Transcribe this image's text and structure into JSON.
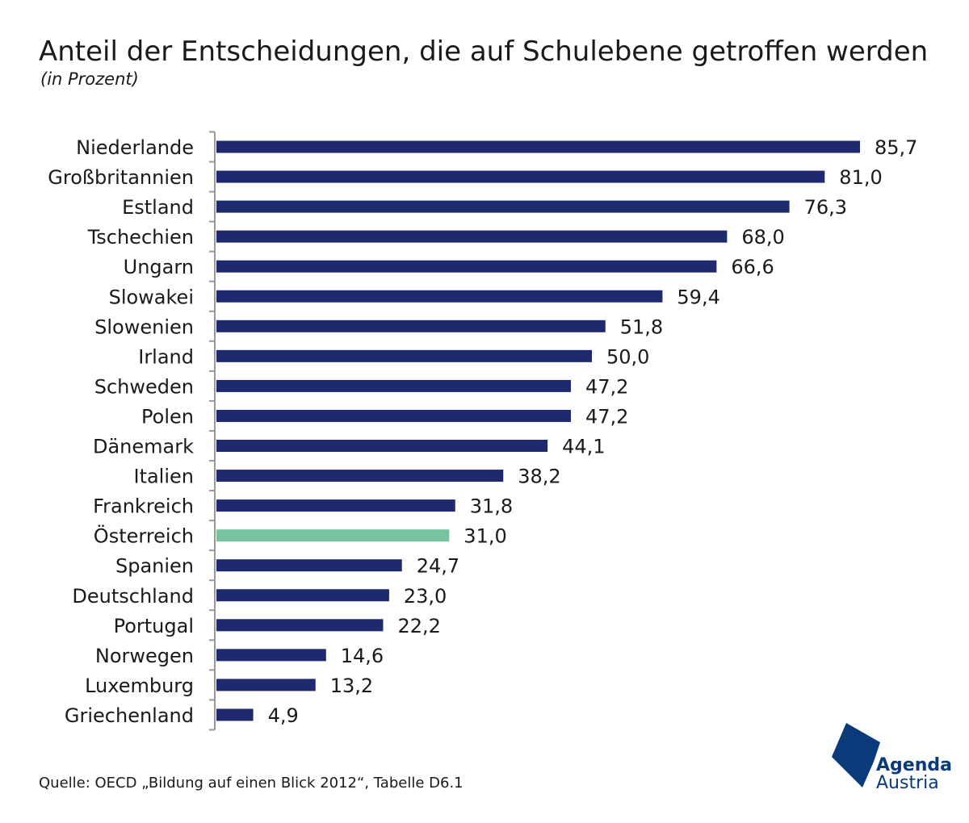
{
  "title": "Anteil der Entscheidungen, die auf Schulebene getroffen werden",
  "subtitle": "(in Prozent)",
  "source": "Quelle: OECD „Bildung auf einen Blick 2012“, Tabelle D6.1",
  "logo": {
    "line1": "Agenda",
    "line2": "Austria",
    "icon": "agenda-austria-logo-icon"
  },
  "colors": {
    "bar": "#1f2a6e",
    "highlight": "#78c2a0",
    "axis": "#999999",
    "logo": "#0a3a7a"
  },
  "chart_data": {
    "type": "bar",
    "orientation": "horizontal",
    "categories": [
      "Niederlande",
      "Großbritannien",
      "Estland",
      "Tschechien",
      "Ungarn",
      "Slowakei",
      "Slowenien",
      "Irland",
      "Schweden",
      "Polen",
      "Dänemark",
      "Italien",
      "Frankreich",
      "Österreich",
      "Spanien",
      "Deutschland",
      "Portugal",
      "Norwegen",
      "Luxemburg",
      "Griechenland"
    ],
    "values": [
      85.7,
      81.0,
      76.3,
      68.0,
      66.6,
      59.4,
      51.8,
      50.0,
      47.2,
      47.2,
      44.1,
      38.2,
      31.8,
      31.0,
      24.7,
      23.0,
      22.2,
      14.6,
      13.2,
      4.9
    ],
    "value_labels": [
      "85,7",
      "81,0",
      "76,3",
      "68,0",
      "66,6",
      "59,4",
      "51,8",
      "50,0",
      "47,2",
      "47,2",
      "44,1",
      "38,2",
      "31,8",
      "31,0",
      "24,7",
      "23,0",
      "22,2",
      "14,6",
      "13,2",
      "4,9"
    ],
    "highlight": "Österreich",
    "xlim": [
      0,
      100
    ],
    "grid": false
  }
}
